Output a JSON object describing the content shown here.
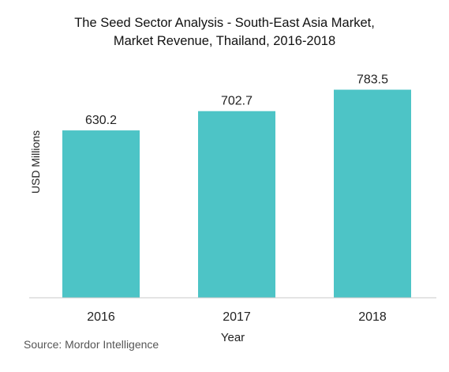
{
  "chart_data": {
    "type": "bar",
    "title": [
      "The Seed Sector Analysis - South-East Asia Market,",
      "Market Revenue, Thailand, 2016-2018"
    ],
    "categories": [
      "2016",
      "2017",
      "2018"
    ],
    "values": [
      630.2,
      702.7,
      783.5
    ],
    "value_labels": [
      "630.2",
      "702.7",
      "783.5"
    ],
    "xlabel": "Year",
    "ylabel": "USD Millions",
    "ylim": [
      0,
      800
    ],
    "grid": false,
    "legend": "none",
    "bar_color": "#4dc4c6"
  },
  "source": "Source: Mordor Intelligence"
}
